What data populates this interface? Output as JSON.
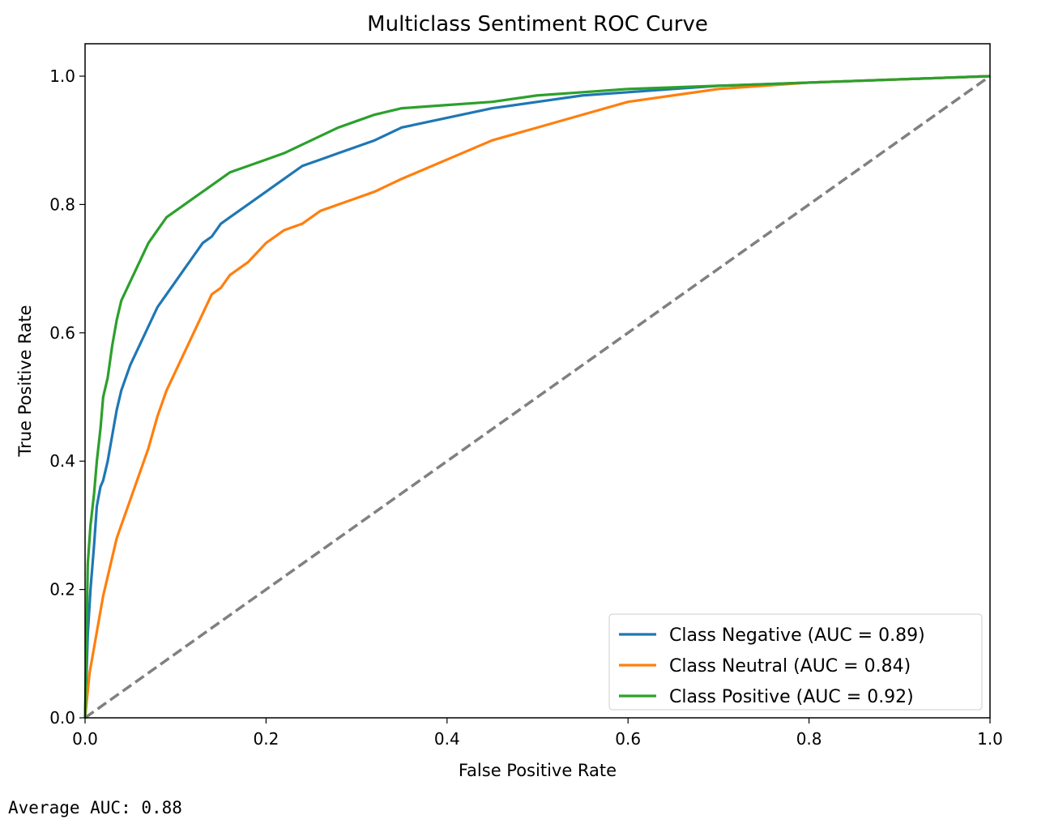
{
  "chart_data": {
    "type": "line",
    "title": "Multiclass Sentiment ROC Curve",
    "xlabel": "False Positive Rate",
    "ylabel": "True Positive Rate",
    "xlim": [
      0.0,
      1.0
    ],
    "ylim": [
      0.0,
      1.0
    ],
    "xticks": [
      "0.0",
      "0.2",
      "0.4",
      "0.6",
      "0.8",
      "1.0"
    ],
    "yticks": [
      "0.0",
      "0.2",
      "0.4",
      "0.6",
      "0.8",
      "1.0"
    ],
    "grid": false,
    "legend_position": "lower-right",
    "series": [
      {
        "name": "Class Negative (AUC = 0.89)",
        "color": "#1f77b4",
        "x": [
          0.0,
          0.003,
          0.006,
          0.01,
          0.013,
          0.017,
          0.02,
          0.025,
          0.03,
          0.035,
          0.04,
          0.045,
          0.05,
          0.06,
          0.07,
          0.08,
          0.09,
          0.1,
          0.11,
          0.12,
          0.13,
          0.14,
          0.15,
          0.16,
          0.17,
          0.18,
          0.2,
          0.22,
          0.24,
          0.26,
          0.28,
          0.3,
          0.32,
          0.35,
          0.4,
          0.45,
          0.5,
          0.55,
          0.6,
          0.65,
          0.7,
          0.8,
          0.9,
          1.0
        ],
        "y": [
          0.0,
          0.13,
          0.2,
          0.27,
          0.33,
          0.36,
          0.37,
          0.4,
          0.44,
          0.48,
          0.51,
          0.53,
          0.55,
          0.58,
          0.61,
          0.64,
          0.66,
          0.68,
          0.7,
          0.72,
          0.74,
          0.75,
          0.77,
          0.78,
          0.79,
          0.8,
          0.82,
          0.84,
          0.86,
          0.87,
          0.88,
          0.89,
          0.9,
          0.92,
          0.935,
          0.95,
          0.96,
          0.97,
          0.975,
          0.98,
          0.985,
          0.99,
          0.995,
          1.0
        ]
      },
      {
        "name": "Class Neutral (AUC = 0.84)",
        "color": "#ff7f0e",
        "x": [
          0.0,
          0.005,
          0.01,
          0.015,
          0.02,
          0.025,
          0.03,
          0.035,
          0.04,
          0.05,
          0.06,
          0.07,
          0.08,
          0.09,
          0.1,
          0.11,
          0.12,
          0.13,
          0.14,
          0.15,
          0.16,
          0.17,
          0.18,
          0.2,
          0.22,
          0.24,
          0.26,
          0.28,
          0.3,
          0.32,
          0.35,
          0.4,
          0.45,
          0.5,
          0.55,
          0.6,
          0.65,
          0.7,
          0.8,
          0.9,
          1.0
        ],
        "y": [
          0.0,
          0.07,
          0.11,
          0.15,
          0.19,
          0.22,
          0.25,
          0.28,
          0.3,
          0.34,
          0.38,
          0.42,
          0.47,
          0.51,
          0.54,
          0.57,
          0.6,
          0.63,
          0.66,
          0.67,
          0.69,
          0.7,
          0.71,
          0.74,
          0.76,
          0.77,
          0.79,
          0.8,
          0.81,
          0.82,
          0.84,
          0.87,
          0.9,
          0.92,
          0.94,
          0.96,
          0.97,
          0.98,
          0.99,
          0.995,
          1.0
        ]
      },
      {
        "name": "Class Positive (AUC = 0.92)",
        "color": "#2ca02c",
        "x": [
          0.0,
          0.003,
          0.006,
          0.01,
          0.013,
          0.017,
          0.02,
          0.025,
          0.03,
          0.035,
          0.04,
          0.05,
          0.06,
          0.07,
          0.08,
          0.09,
          0.1,
          0.12,
          0.14,
          0.16,
          0.18,
          0.2,
          0.22,
          0.25,
          0.28,
          0.3,
          0.32,
          0.35,
          0.4,
          0.45,
          0.5,
          0.55,
          0.6,
          0.7,
          0.8,
          0.9,
          1.0
        ],
        "y": [
          0.0,
          0.24,
          0.3,
          0.35,
          0.4,
          0.45,
          0.5,
          0.53,
          0.58,
          0.62,
          0.65,
          0.68,
          0.71,
          0.74,
          0.76,
          0.78,
          0.79,
          0.81,
          0.83,
          0.85,
          0.86,
          0.87,
          0.88,
          0.9,
          0.92,
          0.93,
          0.94,
          0.95,
          0.955,
          0.96,
          0.97,
          0.975,
          0.98,
          0.985,
          0.99,
          0.995,
          1.0
        ]
      }
    ],
    "reference_line": {
      "x": [
        0.0,
        1.0
      ],
      "y": [
        0.0,
        1.0
      ],
      "color": "#808080",
      "style": "dashed"
    }
  },
  "footer": {
    "text": "Average AUC: 0.88"
  }
}
